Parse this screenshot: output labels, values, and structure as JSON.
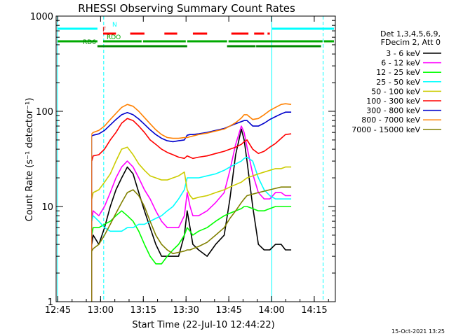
{
  "chart_data": {
    "type": "line",
    "title": "RHESSI Observing Summary Count Rates",
    "xlabel": "Start Time (22-Jul-10 12:44:22)",
    "ylabel": "Count Rate (s⁻¹ detector⁻¹)",
    "yscale": "log",
    "xlim_minutes": [
      0,
      98
    ],
    "ylim": [
      1,
      1000
    ],
    "x_ticks": [
      {
        "t": 0.6,
        "label": "12:45"
      },
      {
        "t": 15.6,
        "label": "13:00"
      },
      {
        "t": 30.6,
        "label": "13:15"
      },
      {
        "t": 45.6,
        "label": "13:30"
      },
      {
        "t": 60.6,
        "label": "13:45"
      },
      {
        "t": 75.6,
        "label": "14:00"
      },
      {
        "t": 90.6,
        "label": "14:15"
      }
    ],
    "y_ticks": [
      {
        "v": 1,
        "label": "1"
      },
      {
        "v": 10,
        "label": "10"
      },
      {
        "v": 100,
        "label": "100"
      },
      {
        "v": 1000,
        "label": "1000"
      }
    ],
    "legend_header": [
      "Det 1,3,4,5,6,9,",
      "FDecim 2, Att 0"
    ],
    "series": [
      {
        "name": "3 - 6 keV",
        "color": "#000000",
        "x": [
          12.5,
          13,
          15,
          17,
          19,
          21,
          23,
          25,
          27,
          29,
          31,
          33,
          35,
          37,
          39,
          41,
          43,
          45,
          46,
          47,
          48,
          50,
          53,
          56,
          59,
          61,
          63,
          65,
          66,
          67,
          69,
          71,
          73,
          75,
          77,
          79,
          80.5,
          82.5
        ],
        "y": [
          4,
          5,
          4,
          6,
          10,
          15,
          20,
          26,
          22,
          14,
          9,
          6,
          4,
          3,
          3,
          3,
          3,
          5,
          9,
          6,
          4,
          3.5,
          3,
          4,
          5,
          12,
          35,
          65,
          50,
          30,
          10,
          4,
          3.5,
          3.5,
          4,
          4,
          3.5,
          3.5
        ]
      },
      {
        "name": "6 - 12 keV",
        "color": "#ff00ff",
        "x": [
          12.5,
          13,
          15,
          17,
          19,
          21,
          23,
          25,
          27,
          29,
          31,
          33,
          35,
          37,
          39,
          41,
          43,
          45,
          46,
          47,
          48,
          50,
          53,
          56,
          59,
          61,
          63,
          65,
          66,
          67,
          69,
          71,
          73,
          75,
          77,
          79,
          80.5,
          82.5
        ],
        "y": [
          7,
          9,
          8,
          10,
          14,
          20,
          26,
          30,
          26,
          20,
          15,
          12,
          9,
          7,
          6,
          6,
          6,
          8,
          14,
          10,
          8,
          8,
          9,
          11,
          14,
          24,
          45,
          70,
          60,
          42,
          22,
          14,
          12,
          12,
          14,
          14,
          13,
          13
        ]
      },
      {
        "name": "12 - 25 keV",
        "color": "#00ff00",
        "x": [
          12.5,
          13,
          15,
          17,
          19,
          21,
          23,
          25,
          27,
          29,
          31,
          33,
          35,
          37,
          39,
          41,
          43,
          45,
          46,
          47,
          48,
          50,
          53,
          56,
          59,
          61,
          63,
          65,
          66,
          67,
          69,
          71,
          73,
          75,
          77,
          79,
          80.5,
          82.5
        ],
        "y": [
          5,
          6,
          6,
          6.5,
          7,
          8,
          9,
          8,
          7,
          5.5,
          4,
          3,
          2.5,
          2.5,
          3,
          3.5,
          4,
          5,
          6,
          5.5,
          5,
          5.5,
          6,
          7,
          8,
          8.5,
          9,
          9.5,
          10,
          10,
          9.5,
          9,
          9,
          9.5,
          10,
          10,
          10,
          10
        ]
      },
      {
        "name": "25 - 50 keV",
        "color": "#00ffff",
        "x": [
          12.5,
          13,
          15,
          17,
          19,
          21,
          23,
          25,
          27,
          29,
          31,
          33,
          35,
          37,
          39,
          41,
          43,
          45,
          46,
          47,
          48,
          50,
          53,
          56,
          59,
          61,
          63,
          65,
          66,
          67,
          69,
          71,
          73,
          75,
          77,
          79,
          80.5,
          82.5
        ],
        "y": [
          7,
          8,
          7,
          6,
          5.5,
          5.5,
          5.5,
          6,
          6,
          6.5,
          6.5,
          7,
          7.5,
          8,
          9,
          10,
          12,
          15,
          20,
          20,
          20,
          20,
          21,
          22,
          24,
          26,
          28,
          30,
          32,
          33,
          30,
          20,
          15,
          13,
          12,
          12,
          12,
          12
        ]
      },
      {
        "name": "50 - 100 keV",
        "color": "#cccc00",
        "x": [
          12.5,
          13,
          15,
          17,
          19,
          21,
          23,
          25,
          27,
          29,
          31,
          33,
          35,
          37,
          39,
          41,
          43,
          45,
          46,
          47,
          48,
          50,
          53,
          56,
          59,
          61,
          63,
          65,
          66,
          67,
          69,
          71,
          73,
          75,
          77,
          79,
          80.5,
          82.5
        ],
        "y": [
          12,
          14,
          15,
          18,
          22,
          30,
          40,
          42,
          35,
          28,
          24,
          21,
          20,
          19,
          19,
          20,
          21,
          23,
          15,
          13,
          12,
          12.5,
          13,
          14,
          15,
          16,
          17,
          18,
          19,
          20,
          21,
          22,
          23,
          24,
          25,
          25,
          26,
          26
        ]
      },
      {
        "name": "100 - 300 keV",
        "color": "#ff0000",
        "x": [
          12.5,
          13,
          15,
          17,
          19,
          21,
          23,
          25,
          27,
          29,
          31,
          33,
          35,
          37,
          39,
          41,
          43,
          45,
          46,
          47,
          48,
          50,
          53,
          56,
          59,
          61,
          63,
          65,
          66,
          67,
          69,
          71,
          73,
          75,
          77,
          79,
          80.5,
          82.5
        ],
        "y": [
          30,
          34,
          35,
          40,
          50,
          60,
          75,
          84,
          80,
          70,
          60,
          50,
          45,
          40,
          37,
          35,
          33,
          32,
          34,
          33,
          32,
          33,
          34,
          36,
          38,
          40,
          42,
          45,
          48,
          50,
          40,
          36,
          38,
          42,
          46,
          52,
          57,
          58
        ]
      },
      {
        "name": "300 - 800 keV",
        "color": "#0000cc",
        "x": [
          12.5,
          13,
          15,
          17,
          19,
          21,
          23,
          25,
          27,
          29,
          31,
          33,
          35,
          37,
          39,
          41,
          43,
          45,
          46,
          47,
          48,
          50,
          53,
          56,
          59,
          61,
          63,
          65,
          66,
          67,
          69,
          71,
          73,
          75,
          77,
          79,
          80.5,
          82.5
        ],
        "y": [
          55,
          56,
          58,
          63,
          72,
          82,
          92,
          97,
          92,
          83,
          73,
          64,
          57,
          52,
          49,
          48,
          49,
          50,
          56,
          57,
          57,
          58,
          60,
          63,
          66,
          70,
          74,
          78,
          80,
          80,
          70,
          70,
          75,
          82,
          88,
          94,
          98,
          98
        ]
      },
      {
        "name": "800 - 7000 keV",
        "color": "#ff8000",
        "x": [
          12.5,
          13,
          15,
          17,
          19,
          21,
          23,
          25,
          27,
          29,
          31,
          33,
          35,
          37,
          39,
          41,
          43,
          45,
          46,
          47,
          48,
          50,
          53,
          56,
          59,
          61,
          63,
          65,
          66,
          67,
          69,
          71,
          73,
          75,
          77,
          79,
          80.5,
          82.5
        ],
        "y": [
          58,
          60,
          63,
          70,
          82,
          95,
          110,
          118,
          113,
          100,
          86,
          74,
          64,
          57,
          53,
          52,
          52,
          53,
          53,
          54,
          55,
          57,
          59,
          62,
          65,
          70,
          76,
          85,
          92,
          92,
          82,
          84,
          92,
          102,
          110,
          118,
          120,
          118
        ]
      },
      {
        "name": "7000 - 15000 keV",
        "color": "#808000",
        "x": [
          12.5,
          13,
          15,
          17,
          19,
          21,
          23,
          25,
          27,
          29,
          31,
          33,
          35,
          37,
          39,
          41,
          43,
          45,
          46,
          47,
          48,
          50,
          53,
          56,
          59,
          61,
          63,
          65,
          66,
          67,
          69,
          71,
          73,
          75,
          77,
          79,
          80.5,
          82.5
        ],
        "y": [
          3.4,
          3.6,
          4,
          5,
          6.5,
          8.5,
          11,
          14,
          15,
          13,
          10,
          7,
          5,
          4,
          3.5,
          3.2,
          3.3,
          3.4,
          3.5,
          3.5,
          3.6,
          3.8,
          4.2,
          5,
          6,
          7.5,
          9,
          11,
          12,
          13,
          13.5,
          14,
          14.5,
          15,
          15.5,
          16,
          16,
          16
        ]
      }
    ],
    "flag_bars": [
      {
        "label": "N",
        "color": "#00ffff",
        "segments": [
          [
            0.6,
            14.5
          ],
          [
            75.8,
            97.5
          ]
        ]
      },
      {
        "label": "F",
        "color": "#ff0000",
        "segments": [
          [
            16.5,
            21
          ],
          [
            26,
            31
          ],
          [
            38,
            42.5
          ],
          [
            48,
            53
          ],
          [
            61.5,
            67.5
          ],
          [
            69.5,
            73
          ],
          [
            74.2,
            75
          ]
        ]
      },
      {
        "label": "RDO",
        "color": "#00aa00",
        "segments": [
          [
            0.5,
            14.5
          ],
          [
            16.5,
            30
          ],
          [
            30.5,
            45.5
          ],
          [
            46,
            60
          ],
          [
            60.5,
            93.5
          ],
          [
            94,
            97.5
          ]
        ]
      },
      {
        "label": "RD6",
        "color": "#008800",
        "segments": [
          [
            14.5,
            46
          ],
          [
            60,
            70
          ],
          [
            70.2,
            93
          ]
        ]
      }
    ],
    "vertical_lines": [
      {
        "t": 0.5,
        "color": "#00ffff",
        "style": "solid"
      },
      {
        "t": 16.7,
        "color": "#00ffff",
        "style": "dashed"
      },
      {
        "t": 75.7,
        "color": "#00ffff",
        "style": "solid"
      },
      {
        "t": 93.7,
        "color": "#00ffff",
        "style": "dashed"
      }
    ],
    "grid": false,
    "legend_position": "right"
  },
  "footer": {
    "timestamp": "15-Oct-2021 13:25"
  }
}
